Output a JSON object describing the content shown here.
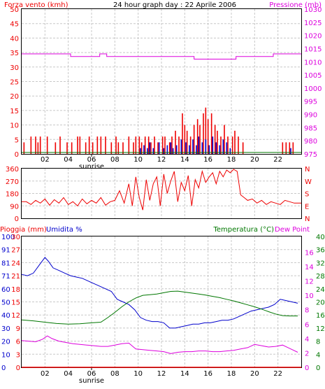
{
  "colors": {
    "red": "#ee0000",
    "magenta": "#dd00dd",
    "blue": "#0000cc",
    "green": "#007700",
    "grid": "#c8c8c8",
    "frame": "#000000"
  },
  "chart_data": [
    {
      "type": "bar",
      "title": "24 hour graph day : 22 Aprile 2006",
      "left_label": "Forza vento (kmh)",
      "right_label": "Pressione (mb)",
      "x_ticks": [
        "02",
        "04",
        "06",
        "08",
        "10",
        "12",
        "14",
        "16",
        "18",
        "20",
        "22"
      ],
      "x_note": "sunrise",
      "y_left_ticks": [
        "0",
        "5",
        "10",
        "15",
        "20",
        "25",
        "30",
        "35",
        "40",
        "45",
        "50"
      ],
      "y_right_ticks": [
        "975",
        "980",
        "985",
        "990",
        "995",
        "1000",
        "1005",
        "1010",
        "1015",
        "1020",
        "1025",
        "1030"
      ],
      "ylim_left": [
        0,
        50
      ],
      "ylim_right": [
        975,
        1030
      ],
      "xlim": [
        0,
        24
      ],
      "series": [
        {
          "role": "gust-bars",
          "color": "#ee0000",
          "x": [
            0.2,
            0.8,
            1.2,
            1.4,
            1.6,
            2.2,
            2.9,
            3.3,
            3.9,
            4.3,
            4.8,
            5.0,
            5.5,
            5.8,
            6.1,
            6.5,
            6.8,
            7.2,
            7.7,
            8.1,
            8.3,
            8.7,
            9.2,
            9.6,
            9.8,
            10.1,
            10.3,
            10.6,
            10.9,
            11.1,
            11.4,
            11.7,
            12.1,
            12.3,
            12.7,
            12.9,
            13.2,
            13.5,
            13.8,
            14.0,
            14.2,
            14.5,
            14.8,
            15.1,
            15.3,
            15.6,
            15.8,
            16.0,
            16.3,
            16.6,
            16.8,
            17.1,
            17.4,
            17.7,
            18.1,
            18.3,
            18.6,
            19.0,
            22.4,
            22.7,
            23.0,
            23.3
          ],
          "values": [
            4,
            6,
            6,
            4,
            6,
            6,
            4,
            6,
            4,
            4,
            6,
            6,
            4,
            6,
            4,
            6,
            6,
            6,
            4,
            6,
            4,
            4,
            6,
            4,
            6,
            6,
            4,
            6,
            6,
            4,
            6,
            4,
            6,
            6,
            4,
            6,
            8,
            6,
            14,
            10,
            8,
            6,
            10,
            12,
            10,
            14,
            16,
            12,
            14,
            10,
            8,
            6,
            10,
            6,
            6,
            8,
            6,
            4,
            4,
            4,
            4,
            4
          ]
        },
        {
          "role": "wind-bars",
          "color": "#0000cc",
          "x": [
            10.2,
            10.5,
            10.8,
            11.0,
            11.3,
            11.8,
            12.2,
            12.5,
            12.8,
            13.0,
            13.3,
            13.7,
            14.1,
            14.4,
            14.7,
            15.0,
            15.2,
            15.5,
            15.8,
            16.1,
            16.4,
            16.7,
            17.0,
            17.3,
            17.6,
            17.9,
            23.1
          ],
          "values": [
            2,
            3,
            2,
            4,
            2,
            4,
            2,
            3,
            4,
            2,
            3,
            5,
            4,
            3,
            5,
            3,
            6,
            4,
            5,
            3,
            6,
            4,
            3,
            5,
            4,
            2,
            2
          ]
        },
        {
          "role": "pressure-line",
          "color": "#dd00dd",
          "x": [
            0,
            4.2,
            4.2,
            6.7,
            6.7,
            7.3,
            7.3,
            14.8,
            14.8,
            18.4,
            18.4,
            21.6,
            21.6,
            24
          ],
          "values": [
            1013,
            1013,
            1012,
            1012,
            1013,
            1013,
            1012,
            1012,
            1011,
            1011,
            1012,
            1012,
            1013,
            1013
          ]
        },
        {
          "role": "baseline-line",
          "color": "#007700",
          "x": [
            0,
            24
          ],
          "values": [
            0.5,
            0.5
          ]
        }
      ]
    },
    {
      "type": "line",
      "y_ticks": [
        "0",
        "90",
        "180",
        "270",
        "360"
      ],
      "y_right_ticks": [
        "N",
        "W",
        "S",
        "E",
        "N"
      ],
      "ylim": [
        0,
        360
      ],
      "xlim": [
        0,
        24
      ],
      "series": [
        {
          "role": "wind-direction",
          "color": "#ee0000",
          "x": [
            0,
            0.4,
            0.8,
            1.2,
            1.6,
            2.0,
            2.4,
            2.8,
            3.2,
            3.6,
            4.0,
            4.4,
            4.8,
            5.2,
            5.6,
            6.0,
            6.4,
            6.8,
            7.2,
            7.6,
            8.0,
            8.4,
            8.8,
            9.2,
            9.5,
            9.8,
            10.1,
            10.4,
            10.7,
            11.0,
            11.3,
            11.6,
            11.9,
            12.2,
            12.5,
            12.8,
            13.1,
            13.4,
            13.7,
            14.0,
            14.3,
            14.6,
            14.9,
            15.2,
            15.5,
            15.8,
            16.1,
            16.4,
            16.7,
            17.0,
            17.3,
            17.6,
            17.9,
            18.2,
            18.5,
            18.8,
            19.1,
            19.4,
            19.8,
            20.2,
            20.6,
            21.0,
            21.4,
            21.8,
            22.2,
            22.6,
            23.0,
            23.4,
            24
          ],
          "values": [
            120,
            120,
            100,
            130,
            110,
            140,
            95,
            135,
            110,
            150,
            100,
            120,
            90,
            140,
            105,
            130,
            110,
            150,
            95,
            120,
            130,
            200,
            110,
            250,
            90,
            300,
            150,
            60,
            280,
            130,
            250,
            300,
            90,
            320,
            180,
            270,
            340,
            120,
            260,
            200,
            310,
            90,
            280,
            220,
            340,
            260,
            300,
            330,
            250,
            340,
            300,
            350,
            330,
            355,
            340,
            170,
            150,
            130,
            140,
            110,
            130,
            100,
            120,
            110,
            100,
            130,
            120,
            110,
            110
          ]
        }
      ]
    },
    {
      "type": "line",
      "left_label": "Pioggia (mm)",
      "left2_label": "Umidita %",
      "right_label": "Temperatura (°C)",
      "right2_label": "Dew Point",
      "x_ticks": [
        "02",
        "04",
        "06",
        "08",
        "10",
        "12",
        "14",
        "16",
        "18",
        "20",
        "22"
      ],
      "x_note": "sunrise",
      "y_left_rain_ticks": [
        "0",
        "3",
        "6",
        "9",
        "12",
        "15",
        "18",
        "21",
        "24",
        "27",
        "30"
      ],
      "y_left_hum_ticks": [
        "0",
        "10",
        "20",
        "30",
        "40",
        "50",
        "60",
        "71",
        "81",
        "91",
        "100"
      ],
      "y_right_temp_ticks": [
        "0",
        "4",
        "8",
        "12",
        "16",
        "20",
        "24",
        "28",
        "32",
        "36",
        "40"
      ],
      "y_right_dew_ticks": [
        "0",
        "2",
        "4",
        "6",
        "8",
        "10",
        "12",
        "14",
        "16"
      ],
      "ylim_humidity": [
        0,
        100
      ],
      "ylim_temp": [
        0,
        40
      ],
      "xlim": [
        0,
        24
      ],
      "series": [
        {
          "role": "humidity",
          "color": "#0000cc",
          "x": [
            0,
            0.5,
            1.0,
            1.5,
            2.0,
            2.3,
            2.7,
            3.2,
            3.7,
            4.2,
            4.7,
            5.2,
            5.7,
            6.2,
            6.7,
            7.2,
            7.7,
            8.2,
            8.7,
            9.2,
            9.7,
            10.2,
            10.7,
            11.2,
            11.7,
            12.2,
            12.7,
            13.2,
            13.7,
            14.2,
            14.7,
            15.2,
            15.7,
            16.2,
            16.7,
            17.2,
            17.7,
            18.2,
            18.7,
            19.2,
            19.7,
            20.2,
            20.7,
            21.2,
            21.7,
            22.2,
            22.7,
            23.2,
            23.7
          ],
          "values": [
            71,
            70,
            72,
            78,
            84,
            81,
            76,
            74,
            72,
            70,
            69,
            68,
            66,
            64,
            62,
            60,
            58,
            52,
            50,
            48,
            44,
            38,
            36,
            35,
            35,
            34,
            30,
            30,
            31,
            32,
            33,
            33,
            34,
            34,
            35,
            36,
            36,
            37,
            39,
            41,
            43,
            44,
            45,
            46,
            48,
            52,
            51,
            50,
            49
          ]
        },
        {
          "role": "temperature",
          "color": "#007700",
          "x": [
            0,
            1,
            2,
            3,
            4,
            5,
            6,
            6.8,
            7.4,
            8.0,
            8.6,
            9.2,
            9.8,
            10.4,
            11.0,
            11.6,
            12.2,
            12.8,
            13.4,
            14.0,
            14.6,
            15.2,
            15.8,
            16.4,
            17.0,
            17.6,
            18.2,
            18.8,
            19.4,
            20.0,
            20.6,
            21.2,
            21.8,
            22.4,
            23.0,
            23.7
          ],
          "values": [
            14.5,
            14.2,
            13.8,
            13.4,
            13.2,
            13.3,
            13.6,
            13.8,
            15.2,
            16.8,
            18.5,
            20.0,
            21.2,
            22.0,
            22.2,
            22.4,
            22.8,
            23.2,
            23.3,
            23.0,
            22.7,
            22.4,
            22.1,
            21.7,
            21.3,
            20.8,
            20.3,
            19.7,
            19.1,
            18.5,
            17.8,
            17.0,
            16.3,
            15.8,
            15.7,
            15.7
          ]
        },
        {
          "role": "dew-point",
          "color": "#dd00dd",
          "x": [
            0,
            0.6,
            1.2,
            1.8,
            2.2,
            2.6,
            3.2,
            3.8,
            4.4,
            5.0,
            5.6,
            6.2,
            6.8,
            7.4,
            8.0,
            8.6,
            9.2,
            9.8,
            10.4,
            11.0,
            11.6,
            12.2,
            12.8,
            13.4,
            14.0,
            14.6,
            15.2,
            15.8,
            16.4,
            17.0,
            17.6,
            18.2,
            18.8,
            19.4,
            20.0,
            20.6,
            21.2,
            21.8,
            22.4,
            23.0,
            23.7
          ],
          "values": [
            8.2,
            8.0,
            7.8,
            8.6,
            9.6,
            8.8,
            8.0,
            7.6,
            7.2,
            7.0,
            6.8,
            6.6,
            6.4,
            6.4,
            6.8,
            7.2,
            7.4,
            5.6,
            5.4,
            5.2,
            5.0,
            4.8,
            4.2,
            4.6,
            4.8,
            4.8,
            5.0,
            5.0,
            4.8,
            4.8,
            5.0,
            5.2,
            5.6,
            6.0,
            7.0,
            6.6,
            6.2,
            6.4,
            6.8,
            5.8,
            4.6
          ]
        },
        {
          "role": "rain-line",
          "color": "#ee0000",
          "x": [
            0,
            24
          ],
          "values": [
            0,
            0
          ]
        }
      ]
    }
  ]
}
